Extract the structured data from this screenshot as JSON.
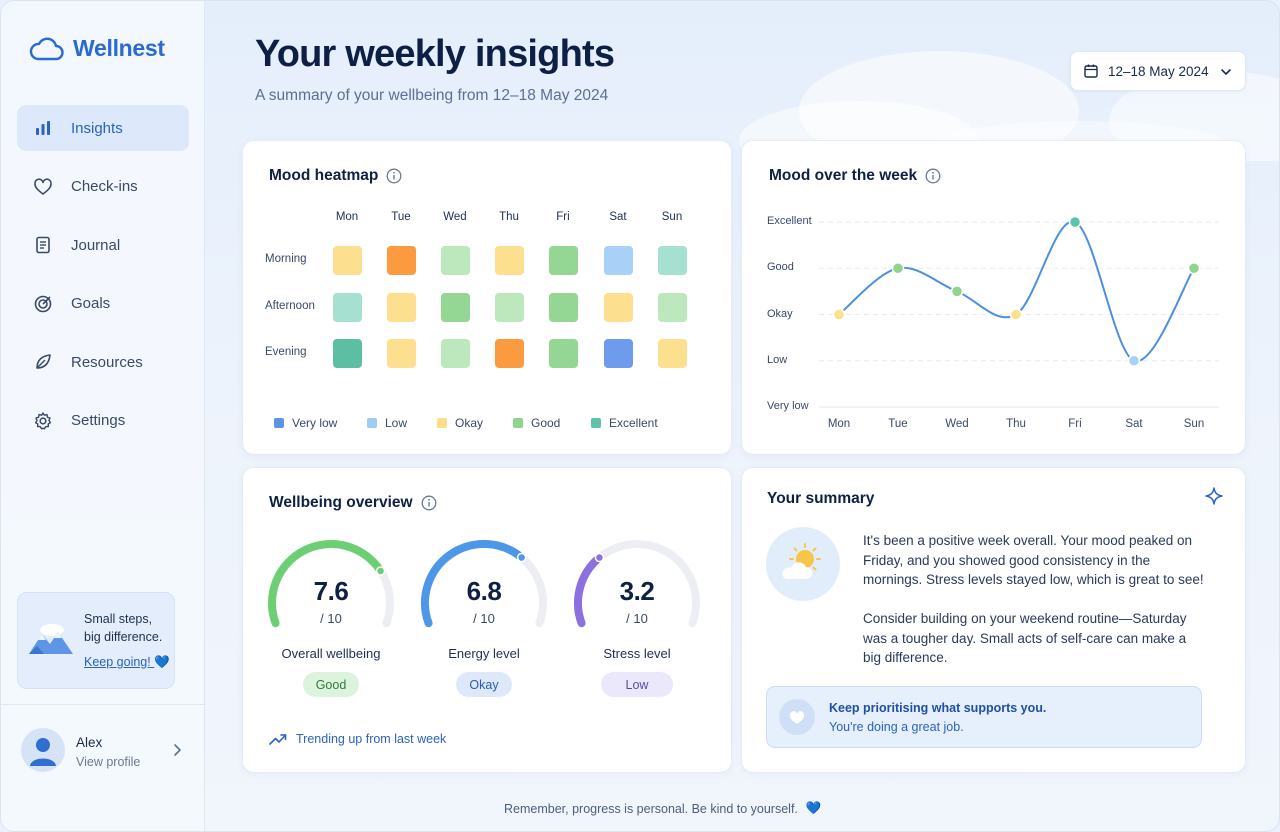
{
  "app": {
    "name": "Wellnest"
  },
  "sidebar": {
    "items": [
      {
        "label": "Insights",
        "icon": "bar-chart-icon",
        "active": true
      },
      {
        "label": "Check-ins",
        "icon": "heart-icon"
      },
      {
        "label": "Journal",
        "icon": "journal-icon"
      },
      {
        "label": "Goals",
        "icon": "target-icon"
      },
      {
        "label": "Resources",
        "icon": "leaf-icon"
      },
      {
        "label": "Settings",
        "icon": "gear-icon"
      }
    ],
    "promo": {
      "line1": "Small steps,",
      "line2": "big difference.",
      "link": "Keep going!",
      "emoji": "💙"
    },
    "profile": {
      "name": "Alex",
      "sub": "View profile"
    }
  },
  "header": {
    "title": "Your weekly insights",
    "subtitle": "A summary of your wellbeing from 12–18 May 2024",
    "date_range": "12–18 May 2024"
  },
  "heatmap": {
    "title": "Mood heatmap",
    "days": [
      "Mon",
      "Tue",
      "Wed",
      "Thu",
      "Fri",
      "Sat",
      "Sun"
    ],
    "rows": [
      {
        "label": "Morning",
        "values": [
          "Okay",
          "Orange",
          "Good-light",
          "Okay",
          "Good",
          "Low",
          "Excellent-light"
        ]
      },
      {
        "label": "Afternoon",
        "values": [
          "Excellent-light",
          "Okay",
          "Good",
          "Good-light",
          "Good",
          "Okay",
          "Good-light"
        ]
      },
      {
        "label": "Evening",
        "values": [
          "Excellent",
          "Okay",
          "Good-light",
          "Orange",
          "Good",
          "Very low",
          "Okay"
        ]
      }
    ],
    "legend": [
      {
        "label": "Very low",
        "color": "#5f93e6"
      },
      {
        "label": "Low",
        "color": "#9fcbf4"
      },
      {
        "label": "Okay",
        "color": "#fbdd8a"
      },
      {
        "label": "Good",
        "color": "#8fd48f"
      },
      {
        "label": "Excellent",
        "color": "#5cc4a8"
      }
    ],
    "colors": {
      "Very low": "#6f9bec",
      "Low": "#a9d0f6",
      "Okay": "#fde08f",
      "Good": "#94d694",
      "Good-light": "#bde7bd",
      "Excellent": "#5cbfa3",
      "Excellent-light": "#a6e0d0",
      "Orange": "#fb9a3f"
    }
  },
  "mood_chart": {
    "title": "Mood over the week",
    "chart_data": {
      "type": "line",
      "categories": [
        "Mon",
        "Tue",
        "Wed",
        "Thu",
        "Fri",
        "Sat",
        "Sun"
      ],
      "y_levels": [
        "Very low",
        "Low",
        "Okay",
        "Good",
        "Excellent"
      ],
      "values": [
        2.0,
        3.0,
        2.5,
        2.0,
        4.0,
        1.0,
        3.0
      ],
      "point_colors": [
        "#fde08f",
        "#8fd48f",
        "#8fd48f",
        "#fde08f",
        "#5cc4a8",
        "#a9d0f6",
        "#8fd48f"
      ],
      "line_color": "#4a8fe0",
      "ylim": [
        0,
        4
      ],
      "grid": true
    }
  },
  "overview": {
    "title": "Wellbeing overview",
    "gauges": [
      {
        "value": "7.6",
        "fraction": 0.76,
        "denom": "/ 10",
        "label": "Overall wellbeing",
        "badge": "Good",
        "color": "#6ccf73",
        "badge_bg": "#dcf3dd",
        "badge_fg": "#2f7a3a"
      },
      {
        "value": "6.8",
        "fraction": 0.68,
        "denom": "/ 10",
        "label": "Energy level",
        "badge": "Okay",
        "color": "#4d97e8",
        "badge_bg": "#dde9fb",
        "badge_fg": "#2a5fb0"
      },
      {
        "value": "3.2",
        "fraction": 0.32,
        "denom": "/ 10",
        "label": "Stress level",
        "badge": "Low",
        "color": "#8b70e0",
        "badge_bg": "#ece8fb",
        "badge_fg": "#5a4a9e"
      }
    ],
    "trend": "Trending up from last week"
  },
  "summary": {
    "title": "Your summary",
    "para1": "It's been a positive week overall. Your mood peaked on Friday, and you showed good consistency in the mornings. Stress levels stayed low, which is great to see!",
    "para2": "Consider building on your weekend routine—Saturday was a tougher day. Small acts of self-care can make a big difference.",
    "callout_line1": "Keep prioritising what supports you.",
    "callout_line2": "You're doing a great job."
  },
  "footer": {
    "note": "Remember, progress is personal. Be kind to yourself.",
    "emoji": "💙"
  }
}
